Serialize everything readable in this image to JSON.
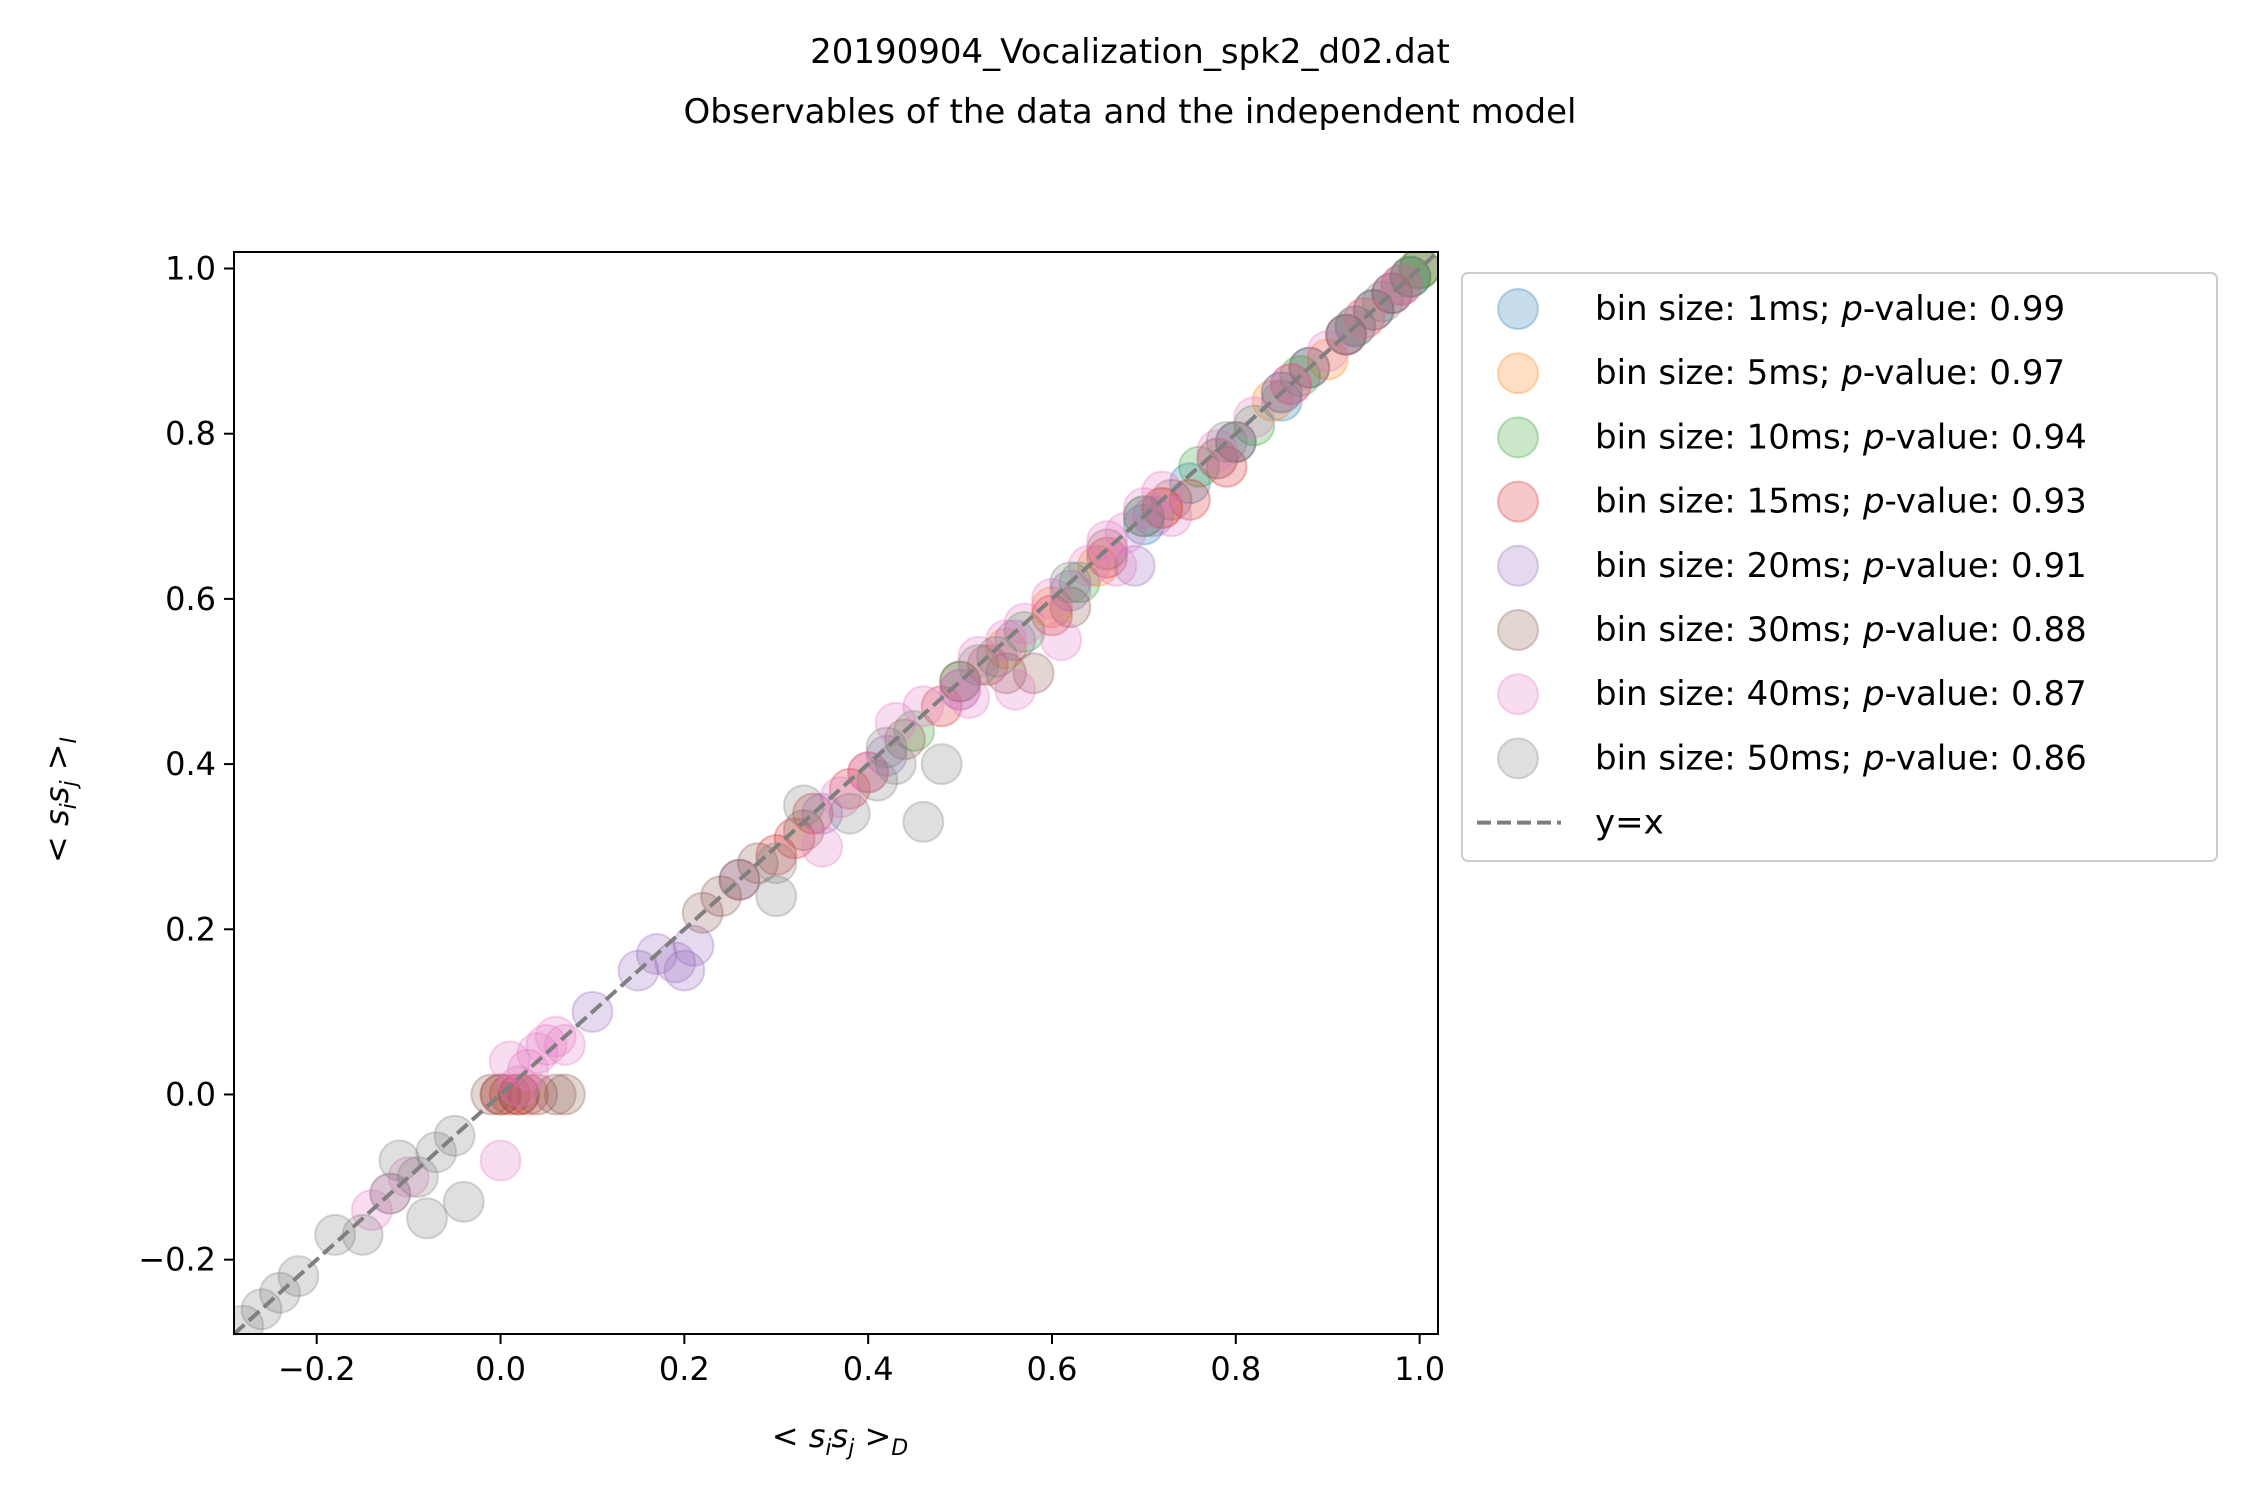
{
  "chart_data": {
    "type": "scatter",
    "title": "20190904_Vocalization_spk2_d02.dat",
    "subtitle": "Observables of the data and the independent model",
    "xlabel": {
      "pre": "< ",
      "main": "s",
      "sub1": "i",
      "mid": "s",
      "sub2": "j",
      "post": " >",
      "sub3": "D"
    },
    "ylabel": {
      "pre": "< ",
      "main": "s",
      "sub1": "i",
      "mid": "s",
      "sub2": "j",
      "post": " >",
      "sub3": "I"
    },
    "xlim": [
      -0.29,
      1.02
    ],
    "ylim": [
      -0.29,
      1.02
    ],
    "xticks": [
      -0.2,
      0.0,
      0.2,
      0.4,
      0.6,
      0.8,
      1.0
    ],
    "yticks": [
      -0.2,
      0.0,
      0.2,
      0.4,
      0.6,
      0.8,
      1.0
    ],
    "xtick_labels": [
      "−0.2",
      "0.0",
      "0.2",
      "0.4",
      "0.6",
      "0.8",
      "1.0"
    ],
    "ytick_labels": [
      "−0.2",
      "0.0",
      "0.2",
      "0.4",
      "0.6",
      "0.8",
      "1.0"
    ],
    "grid": false,
    "legend_position": "outside-right-top",
    "reference_line": {
      "label": "y=x",
      "color": "#7f7f7f"
    },
    "series": [
      {
        "name": "bin size: 1ms; ",
        "pvalue_text": "-value: 0.99",
        "color": "#1f77b4",
        "points": [
          [
            0.7,
            0.69
          ],
          [
            0.75,
            0.74
          ],
          [
            0.8,
            0.79
          ],
          [
            0.85,
            0.84
          ],
          [
            0.88,
            0.88
          ],
          [
            0.92,
            0.92
          ],
          [
            0.95,
            0.95
          ],
          [
            0.97,
            0.97
          ],
          [
            0.99,
            0.99
          ],
          [
            1.0,
            1.0
          ]
        ]
      },
      {
        "name": "bin size: 5ms; ",
        "pvalue_text": "-value: 0.97",
        "color": "#ff7f0e",
        "points": [
          [
            0.55,
            0.54
          ],
          [
            0.6,
            0.59
          ],
          [
            0.65,
            0.64
          ],
          [
            0.72,
            0.71
          ],
          [
            0.78,
            0.77
          ],
          [
            0.84,
            0.84
          ],
          [
            0.9,
            0.89
          ],
          [
            0.94,
            0.94
          ],
          [
            0.98,
            0.98
          ],
          [
            1.0,
            1.0
          ]
        ]
      },
      {
        "name": "bin size: 10ms; ",
        "pvalue_text": "-value: 0.94",
        "color": "#2ca02c",
        "points": [
          [
            0.45,
            0.44
          ],
          [
            0.5,
            0.5
          ],
          [
            0.57,
            0.56
          ],
          [
            0.63,
            0.62
          ],
          [
            0.7,
            0.7
          ],
          [
            0.76,
            0.76
          ],
          [
            0.82,
            0.81
          ],
          [
            0.87,
            0.87
          ],
          [
            0.93,
            0.93
          ],
          [
            0.99,
            0.99
          ],
          [
            1.0,
            1.0
          ]
        ]
      },
      {
        "name": "bin size: 15ms; ",
        "pvalue_text": "-value: 0.93",
        "color": "#d62728",
        "points": [
          [
            0.0,
            0.0
          ],
          [
            0.01,
            0.0
          ],
          [
            0.02,
            0.0
          ],
          [
            0.03,
            0.0
          ],
          [
            0.3,
            0.29
          ],
          [
            0.32,
            0.31
          ],
          [
            0.34,
            0.34
          ],
          [
            0.38,
            0.37
          ],
          [
            0.4,
            0.39
          ],
          [
            0.48,
            0.47
          ],
          [
            0.53,
            0.52
          ],
          [
            0.6,
            0.58
          ],
          [
            0.66,
            0.65
          ],
          [
            0.72,
            0.71
          ],
          [
            0.75,
            0.72
          ],
          [
            0.79,
            0.76
          ],
          [
            0.86,
            0.86
          ],
          [
            0.92,
            0.92
          ],
          [
            0.97,
            0.97
          ]
        ]
      },
      {
        "name": "bin size: 20ms; ",
        "pvalue_text": "-value: 0.91",
        "color": "#9467bd",
        "points": [
          [
            0.1,
            0.1
          ],
          [
            0.15,
            0.15
          ],
          [
            0.17,
            0.17
          ],
          [
            0.19,
            0.16
          ],
          [
            0.2,
            0.15
          ],
          [
            0.21,
            0.18
          ],
          [
            0.26,
            0.26
          ],
          [
            0.35,
            0.34
          ],
          [
            0.42,
            0.41
          ],
          [
            0.5,
            0.49
          ],
          [
            0.56,
            0.55
          ],
          [
            0.62,
            0.61
          ],
          [
            0.69,
            0.64
          ],
          [
            0.71,
            0.7
          ],
          [
            0.78,
            0.77
          ],
          [
            0.85,
            0.85
          ],
          [
            0.93,
            0.93
          ],
          [
            0.98,
            0.98
          ]
        ]
      },
      {
        "name": "bin size: 30ms; ",
        "pvalue_text": "-value: 0.88",
        "color": "#8c564b",
        "points": [
          [
            -0.01,
            0.0
          ],
          [
            0.0,
            0.0
          ],
          [
            0.02,
            0.0
          ],
          [
            0.04,
            0.0
          ],
          [
            0.06,
            0.0
          ],
          [
            0.07,
            0.0
          ],
          [
            0.22,
            0.22
          ],
          [
            0.24,
            0.24
          ],
          [
            0.26,
            0.26
          ],
          [
            0.28,
            0.28
          ],
          [
            0.33,
            0.32
          ],
          [
            0.44,
            0.43
          ],
          [
            0.5,
            0.5
          ],
          [
            0.55,
            0.51
          ],
          [
            0.58,
            0.51
          ],
          [
            0.62,
            0.59
          ],
          [
            0.66,
            0.66
          ],
          [
            0.73,
            0.72
          ],
          [
            0.8,
            0.79
          ],
          [
            0.88,
            0.88
          ],
          [
            0.95,
            0.95
          ]
        ]
      },
      {
        "name": "bin size: 40ms; ",
        "pvalue_text": "-value: 0.87",
        "color": "#e377c2",
        "points": [
          [
            -0.14,
            -0.14
          ],
          [
            -0.12,
            -0.12
          ],
          [
            -0.1,
            -0.1
          ],
          [
            0.0,
            -0.08
          ],
          [
            0.01,
            0.04
          ],
          [
            0.02,
            0.01
          ],
          [
            0.03,
            0.03
          ],
          [
            0.04,
            0.05
          ],
          [
            0.05,
            0.06
          ],
          [
            0.06,
            0.07
          ],
          [
            0.07,
            0.06
          ],
          [
            0.35,
            0.3
          ],
          [
            0.37,
            0.36
          ],
          [
            0.4,
            0.39
          ],
          [
            0.43,
            0.45
          ],
          [
            0.46,
            0.47
          ],
          [
            0.5,
            0.49
          ],
          [
            0.52,
            0.53
          ],
          [
            0.55,
            0.55
          ],
          [
            0.57,
            0.57
          ],
          [
            0.6,
            0.6
          ],
          [
            0.64,
            0.64
          ],
          [
            0.66,
            0.67
          ],
          [
            0.68,
            0.68
          ],
          [
            0.7,
            0.71
          ],
          [
            0.72,
            0.73
          ],
          [
            0.51,
            0.48
          ],
          [
            0.56,
            0.49
          ],
          [
            0.61,
            0.55
          ],
          [
            0.67,
            0.64
          ],
          [
            0.73,
            0.7
          ],
          [
            0.78,
            0.78
          ],
          [
            0.82,
            0.82
          ],
          [
            0.86,
            0.86
          ],
          [
            0.9,
            0.9
          ],
          [
            0.94,
            0.94
          ],
          [
            0.98,
            0.98
          ]
        ]
      },
      {
        "name": "bin size: 50ms; ",
        "pvalue_text": "-value: 0.86",
        "color": "#7f7f7f",
        "points": [
          [
            -0.28,
            -0.28
          ],
          [
            -0.26,
            -0.26
          ],
          [
            -0.24,
            -0.24
          ],
          [
            -0.22,
            -0.22
          ],
          [
            -0.18,
            -0.17
          ],
          [
            -0.15,
            -0.17
          ],
          [
            -0.12,
            -0.12
          ],
          [
            -0.11,
            -0.08
          ],
          [
            -0.09,
            -0.1
          ],
          [
            -0.08,
            -0.15
          ],
          [
            -0.07,
            -0.07
          ],
          [
            -0.05,
            -0.05
          ],
          [
            -0.04,
            -0.13
          ],
          [
            0.3,
            0.24
          ],
          [
            0.3,
            0.28
          ],
          [
            0.33,
            0.35
          ],
          [
            0.38,
            0.34
          ],
          [
            0.41,
            0.38
          ],
          [
            0.42,
            0.42
          ],
          [
            0.43,
            0.4
          ],
          [
            0.46,
            0.33
          ],
          [
            0.48,
            0.4
          ],
          [
            0.52,
            0.52
          ],
          [
            0.54,
            0.53
          ],
          [
            0.62,
            0.62
          ],
          [
            0.7,
            0.7
          ],
          [
            0.79,
            0.79
          ],
          [
            0.85,
            0.85
          ],
          [
            0.92,
            0.92
          ],
          [
            0.96,
            0.96
          ],
          [
            0.99,
            0.99
          ]
        ]
      }
    ]
  }
}
